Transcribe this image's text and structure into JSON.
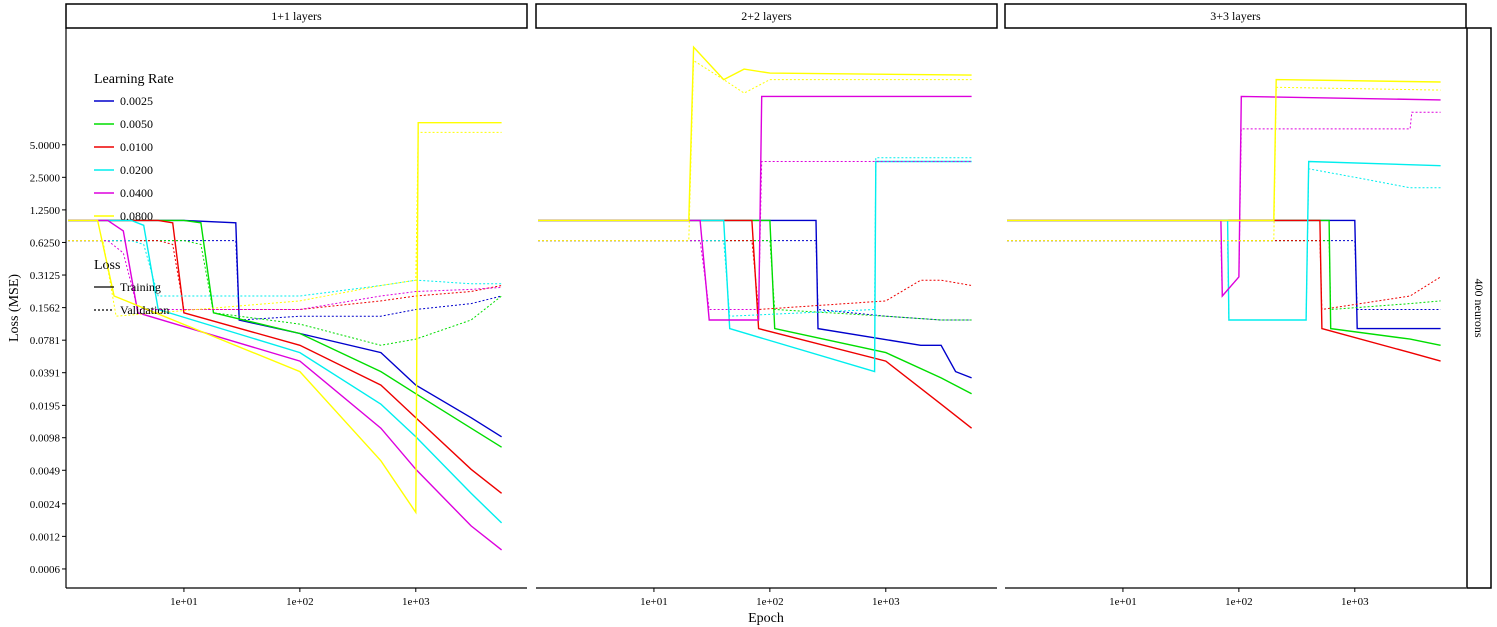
{
  "chart_data": {
    "type": "line",
    "xlabel": "Epoch",
    "ylabel": "Loss (MSE)",
    "x_scale": "log10",
    "y_scale": "log2",
    "xlim": [
      1,
      6000
    ],
    "ylim": [
      0.0004,
      60
    ],
    "x_ticks": [
      10,
      100,
      1000
    ],
    "x_tick_labels": [
      "1e+01",
      "1e+02",
      "1e+03"
    ],
    "y_ticks": [
      0.0006,
      0.0012,
      0.0024,
      0.0049,
      0.0098,
      0.0195,
      0.0391,
      0.0781,
      0.1562,
      0.3125,
      0.625,
      1.25,
      2.5,
      5.0
    ],
    "y_tick_labels": [
      "0.0006",
      "0.0012",
      "0.0024",
      "0.0049",
      "0.0098",
      "0.0195",
      "0.0391",
      "0.0781",
      "0.1562",
      "0.3125",
      "0.6250",
      "1.2500",
      "2.5000",
      "5.0000"
    ],
    "grid": false,
    "legend_placement": "top-left inside first panel",
    "row_strip": "400 neurons",
    "panels": [
      "1+1 layers",
      "2+2 layers",
      "3+3 layers"
    ],
    "legend": {
      "color_title": "Learning Rate",
      "color_entries": [
        {
          "label": "0.0025",
          "color": "#0000cc"
        },
        {
          "label": "0.0050",
          "color": "#00dd00"
        },
        {
          "label": "0.0100",
          "color": "#ee0000"
        },
        {
          "label": "0.0200",
          "color": "#00eeee"
        },
        {
          "label": "0.0400",
          "color": "#dd00dd"
        },
        {
          "label": "0.0800",
          "color": "#ffff00"
        }
      ],
      "linetype_title": "Loss",
      "linetype_entries": [
        {
          "label": "Training",
          "dash": "solid"
        },
        {
          "label": "Validation",
          "dash": "dotted"
        }
      ]
    },
    "series": [
      {
        "panel": 0,
        "lr": "0.0025",
        "loss": "Training",
        "x": [
          1,
          10,
          28,
          30,
          100,
          500,
          1000,
          3000,
          5500
        ],
        "y": [
          1.0,
          1.0,
          0.95,
          0.12,
          0.09,
          0.06,
          0.03,
          0.015,
          0.01
        ]
      },
      {
        "panel": 0,
        "lr": "0.0025",
        "loss": "Validation",
        "x": [
          1,
          10,
          28,
          30,
          100,
          500,
          1000,
          3000,
          5500
        ],
        "y": [
          0.65,
          0.65,
          0.65,
          0.12,
          0.13,
          0.13,
          0.15,
          0.17,
          0.2
        ]
      },
      {
        "panel": 0,
        "lr": "0.0050",
        "loss": "Training",
        "x": [
          1,
          10,
          14,
          18,
          100,
          500,
          1000,
          3000,
          5500
        ],
        "y": [
          1.0,
          1.0,
          0.95,
          0.14,
          0.09,
          0.04,
          0.025,
          0.012,
          0.008
        ]
      },
      {
        "panel": 0,
        "lr": "0.0050",
        "loss": "Validation",
        "x": [
          1,
          10,
          14,
          18,
          100,
          500,
          1000,
          3000,
          5500
        ],
        "y": [
          0.65,
          0.65,
          0.6,
          0.14,
          0.11,
          0.07,
          0.08,
          0.12,
          0.2
        ]
      },
      {
        "panel": 0,
        "lr": "0.0100",
        "loss": "Training",
        "x": [
          1,
          6,
          8,
          10,
          100,
          500,
          1000,
          3000,
          5500
        ],
        "y": [
          1.0,
          1.0,
          0.95,
          0.14,
          0.07,
          0.03,
          0.015,
          0.005,
          0.003
        ]
      },
      {
        "panel": 0,
        "lr": "0.0100",
        "loss": "Validation",
        "x": [
          1,
          6,
          8,
          10,
          100,
          500,
          1000,
          3000,
          5500
        ],
        "y": [
          0.65,
          0.65,
          0.6,
          0.15,
          0.15,
          0.18,
          0.2,
          0.22,
          0.25
        ]
      },
      {
        "panel": 0,
        "lr": "0.0200",
        "loss": "Training",
        "x": [
          1,
          3.5,
          4.5,
          6,
          100,
          500,
          1000,
          3000,
          5500
        ],
        "y": [
          1.0,
          1.0,
          0.9,
          0.15,
          0.06,
          0.02,
          0.01,
          0.003,
          0.0016
        ]
      },
      {
        "panel": 0,
        "lr": "0.0200",
        "loss": "Validation",
        "x": [
          1,
          3.5,
          4.5,
          6,
          100,
          500,
          1000,
          3000,
          5500
        ],
        "y": [
          0.65,
          0.65,
          0.6,
          0.2,
          0.2,
          0.25,
          0.28,
          0.26,
          0.26
        ]
      },
      {
        "panel": 0,
        "lr": "0.0400",
        "loss": "Training",
        "x": [
          1,
          2.2,
          3,
          4,
          100,
          500,
          1000,
          3000,
          5500
        ],
        "y": [
          1.0,
          1.0,
          0.8,
          0.14,
          0.05,
          0.012,
          0.005,
          0.0015,
          0.0009
        ]
      },
      {
        "panel": 0,
        "lr": "0.0400",
        "loss": "Validation",
        "x": [
          1,
          2.2,
          3,
          4,
          100,
          500,
          1000,
          3000,
          5500
        ],
        "y": [
          0.65,
          0.65,
          0.5,
          0.15,
          0.15,
          0.2,
          0.22,
          0.23,
          0.24
        ]
      },
      {
        "panel": 0,
        "lr": "0.0800",
        "loss": "Training",
        "x": [
          1,
          1.8,
          2.5,
          100,
          500,
          1000,
          1050,
          1100,
          5500
        ],
        "y": [
          1.0,
          1.0,
          0.2,
          0.04,
          0.006,
          0.002,
          8.0,
          8.0,
          8.0
        ]
      },
      {
        "panel": 0,
        "lr": "0.0800",
        "loss": "Validation",
        "x": [
          1,
          2,
          2.6,
          100,
          500,
          1000,
          1050,
          1100,
          5500
        ],
        "y": [
          0.65,
          0.65,
          0.13,
          0.18,
          0.25,
          0.28,
          6.5,
          6.5,
          6.5
        ]
      },
      {
        "panel": 1,
        "lr": "0.0025",
        "loss": "Training",
        "x": [
          1,
          100,
          200,
          250,
          260,
          2000,
          3000,
          4000,
          5500
        ],
        "y": [
          1.0,
          1.0,
          1.0,
          1.0,
          0.1,
          0.07,
          0.07,
          0.04,
          0.035
        ]
      },
      {
        "panel": 1,
        "lr": "0.0025",
        "loss": "Validation",
        "x": [
          1,
          100,
          200,
          250,
          260,
          1000,
          3000,
          5500
        ],
        "y": [
          0.65,
          0.65,
          0.65,
          0.65,
          0.15,
          0.13,
          0.12,
          0.12
        ]
      },
      {
        "panel": 1,
        "lr": "0.0050",
        "loss": "Training",
        "x": [
          1,
          50,
          100,
          110,
          1000,
          3000,
          5500
        ],
        "y": [
          1.0,
          1.0,
          1.0,
          0.1,
          0.06,
          0.035,
          0.025
        ]
      },
      {
        "panel": 1,
        "lr": "0.0050",
        "loss": "Validation",
        "x": [
          1,
          50,
          100,
          110,
          1000,
          3000,
          5500
        ],
        "y": [
          0.65,
          0.65,
          0.65,
          0.15,
          0.13,
          0.12,
          0.12
        ]
      },
      {
        "panel": 1,
        "lr": "0.0100",
        "loss": "Training",
        "x": [
          1,
          40,
          70,
          80,
          1000,
          3000,
          5500
        ],
        "y": [
          1.0,
          1.0,
          1.0,
          0.1,
          0.05,
          0.02,
          0.012
        ]
      },
      {
        "panel": 1,
        "lr": "0.0100",
        "loss": "Validation",
        "x": [
          1,
          40,
          70,
          80,
          1000,
          2000,
          3000,
          5500
        ],
        "y": [
          0.65,
          0.65,
          0.65,
          0.15,
          0.18,
          0.28,
          0.28,
          0.25
        ]
      },
      {
        "panel": 1,
        "lr": "0.0200",
        "loss": "Training",
        "x": [
          1,
          30,
          40,
          45,
          800,
          820,
          5500
        ],
        "y": [
          1.0,
          1.0,
          1.0,
          0.1,
          0.04,
          3.5,
          3.5
        ]
      },
      {
        "panel": 1,
        "lr": "0.0200",
        "loss": "Validation",
        "x": [
          1,
          30,
          40,
          45,
          800,
          820,
          5500
        ],
        "y": [
          0.65,
          0.65,
          0.65,
          0.13,
          0.15,
          3.8,
          3.8
        ]
      },
      {
        "panel": 1,
        "lr": "0.0400",
        "loss": "Training",
        "x": [
          1,
          25,
          30,
          80,
          85,
          5500
        ],
        "y": [
          1.0,
          1.0,
          0.12,
          0.12,
          14.0,
          14.0
        ]
      },
      {
        "panel": 1,
        "lr": "0.0400",
        "loss": "Validation",
        "x": [
          1,
          25,
          30,
          80,
          85,
          5500
        ],
        "y": [
          0.65,
          0.65,
          0.15,
          0.15,
          3.5,
          3.5
        ]
      },
      {
        "panel": 1,
        "lr": "0.0800",
        "loss": "Training",
        "x": [
          1,
          20,
          22,
          40,
          60,
          100,
          5500
        ],
        "y": [
          1.0,
          1.0,
          40.0,
          20.0,
          25.0,
          23.0,
          22.0
        ]
      },
      {
        "panel": 1,
        "lr": "0.0800",
        "loss": "Validation",
        "x": [
          1,
          20,
          22,
          40,
          60,
          100,
          5500
        ],
        "y": [
          0.65,
          0.65,
          30.0,
          20.0,
          15.0,
          20.0,
          20.0
        ]
      },
      {
        "panel": 2,
        "lr": "0.0025",
        "loss": "Training",
        "x": [
          1,
          500,
          1000,
          1050,
          3000,
          5500
        ],
        "y": [
          1.0,
          1.0,
          1.0,
          0.1,
          0.1,
          0.1
        ]
      },
      {
        "panel": 2,
        "lr": "0.0025",
        "loss": "Validation",
        "x": [
          1,
          500,
          1000,
          1050,
          3000,
          5500
        ],
        "y": [
          0.65,
          0.65,
          0.65,
          0.15,
          0.15,
          0.15
        ]
      },
      {
        "panel": 2,
        "lr": "0.0050",
        "loss": "Training",
        "x": [
          1,
          400,
          600,
          620,
          3000,
          5500
        ],
        "y": [
          1.0,
          1.0,
          1.0,
          0.1,
          0.08,
          0.07
        ]
      },
      {
        "panel": 2,
        "lr": "0.0050",
        "loss": "Validation",
        "x": [
          1,
          400,
          600,
          620,
          3000,
          5500
        ],
        "y": [
          0.65,
          0.65,
          0.65,
          0.15,
          0.17,
          0.18
        ]
      },
      {
        "panel": 2,
        "lr": "0.0100",
        "loss": "Training",
        "x": [
          1,
          300,
          500,
          520,
          3000,
          5500
        ],
        "y": [
          1.0,
          1.0,
          1.0,
          0.1,
          0.06,
          0.05
        ]
      },
      {
        "panel": 2,
        "lr": "0.0100",
        "loss": "Validation",
        "x": [
          1,
          300,
          500,
          520,
          3000,
          5500
        ],
        "y": [
          0.65,
          0.65,
          0.65,
          0.15,
          0.2,
          0.3
        ]
      },
      {
        "panel": 2,
        "lr": "0.0200",
        "loss": "Training",
        "x": [
          1,
          60,
          80,
          82,
          380,
          400,
          5500
        ],
        "y": [
          1.0,
          1.0,
          1.0,
          0.12,
          0.12,
          3.5,
          3.2
        ]
      },
      {
        "panel": 2,
        "lr": "0.0200",
        "loss": "Validation",
        "x": [
          1,
          60,
          80,
          82,
          380,
          400,
          1000,
          3000,
          5500
        ],
        "y": [
          0.65,
          0.65,
          0.65,
          0.12,
          0.12,
          3.0,
          2.5,
          2.0,
          2.0
        ]
      },
      {
        "panel": 2,
        "lr": "0.0400",
        "loss": "Training",
        "x": [
          1,
          50,
          70,
          72,
          100,
          105,
          5500
        ],
        "y": [
          1.0,
          1.0,
          1.0,
          0.2,
          0.3,
          14.0,
          13.0
        ]
      },
      {
        "panel": 2,
        "lr": "0.0400",
        "loss": "Validation",
        "x": [
          1,
          50,
          70,
          72,
          100,
          105,
          3000,
          3100,
          5500
        ],
        "y": [
          0.65,
          0.65,
          0.65,
          0.2,
          0.3,
          7.0,
          7.0,
          10.0,
          10.0
        ]
      },
      {
        "panel": 2,
        "lr": "0.0800",
        "loss": "Training",
        "x": [
          1,
          150,
          200,
          210,
          5500
        ],
        "y": [
          1.0,
          1.0,
          1.0,
          20.0,
          19.0
        ]
      },
      {
        "panel": 2,
        "lr": "0.0800",
        "loss": "Validation",
        "x": [
          1,
          150,
          200,
          210,
          5500
        ],
        "y": [
          0.65,
          0.65,
          0.65,
          17.0,
          16.0
        ]
      }
    ]
  }
}
